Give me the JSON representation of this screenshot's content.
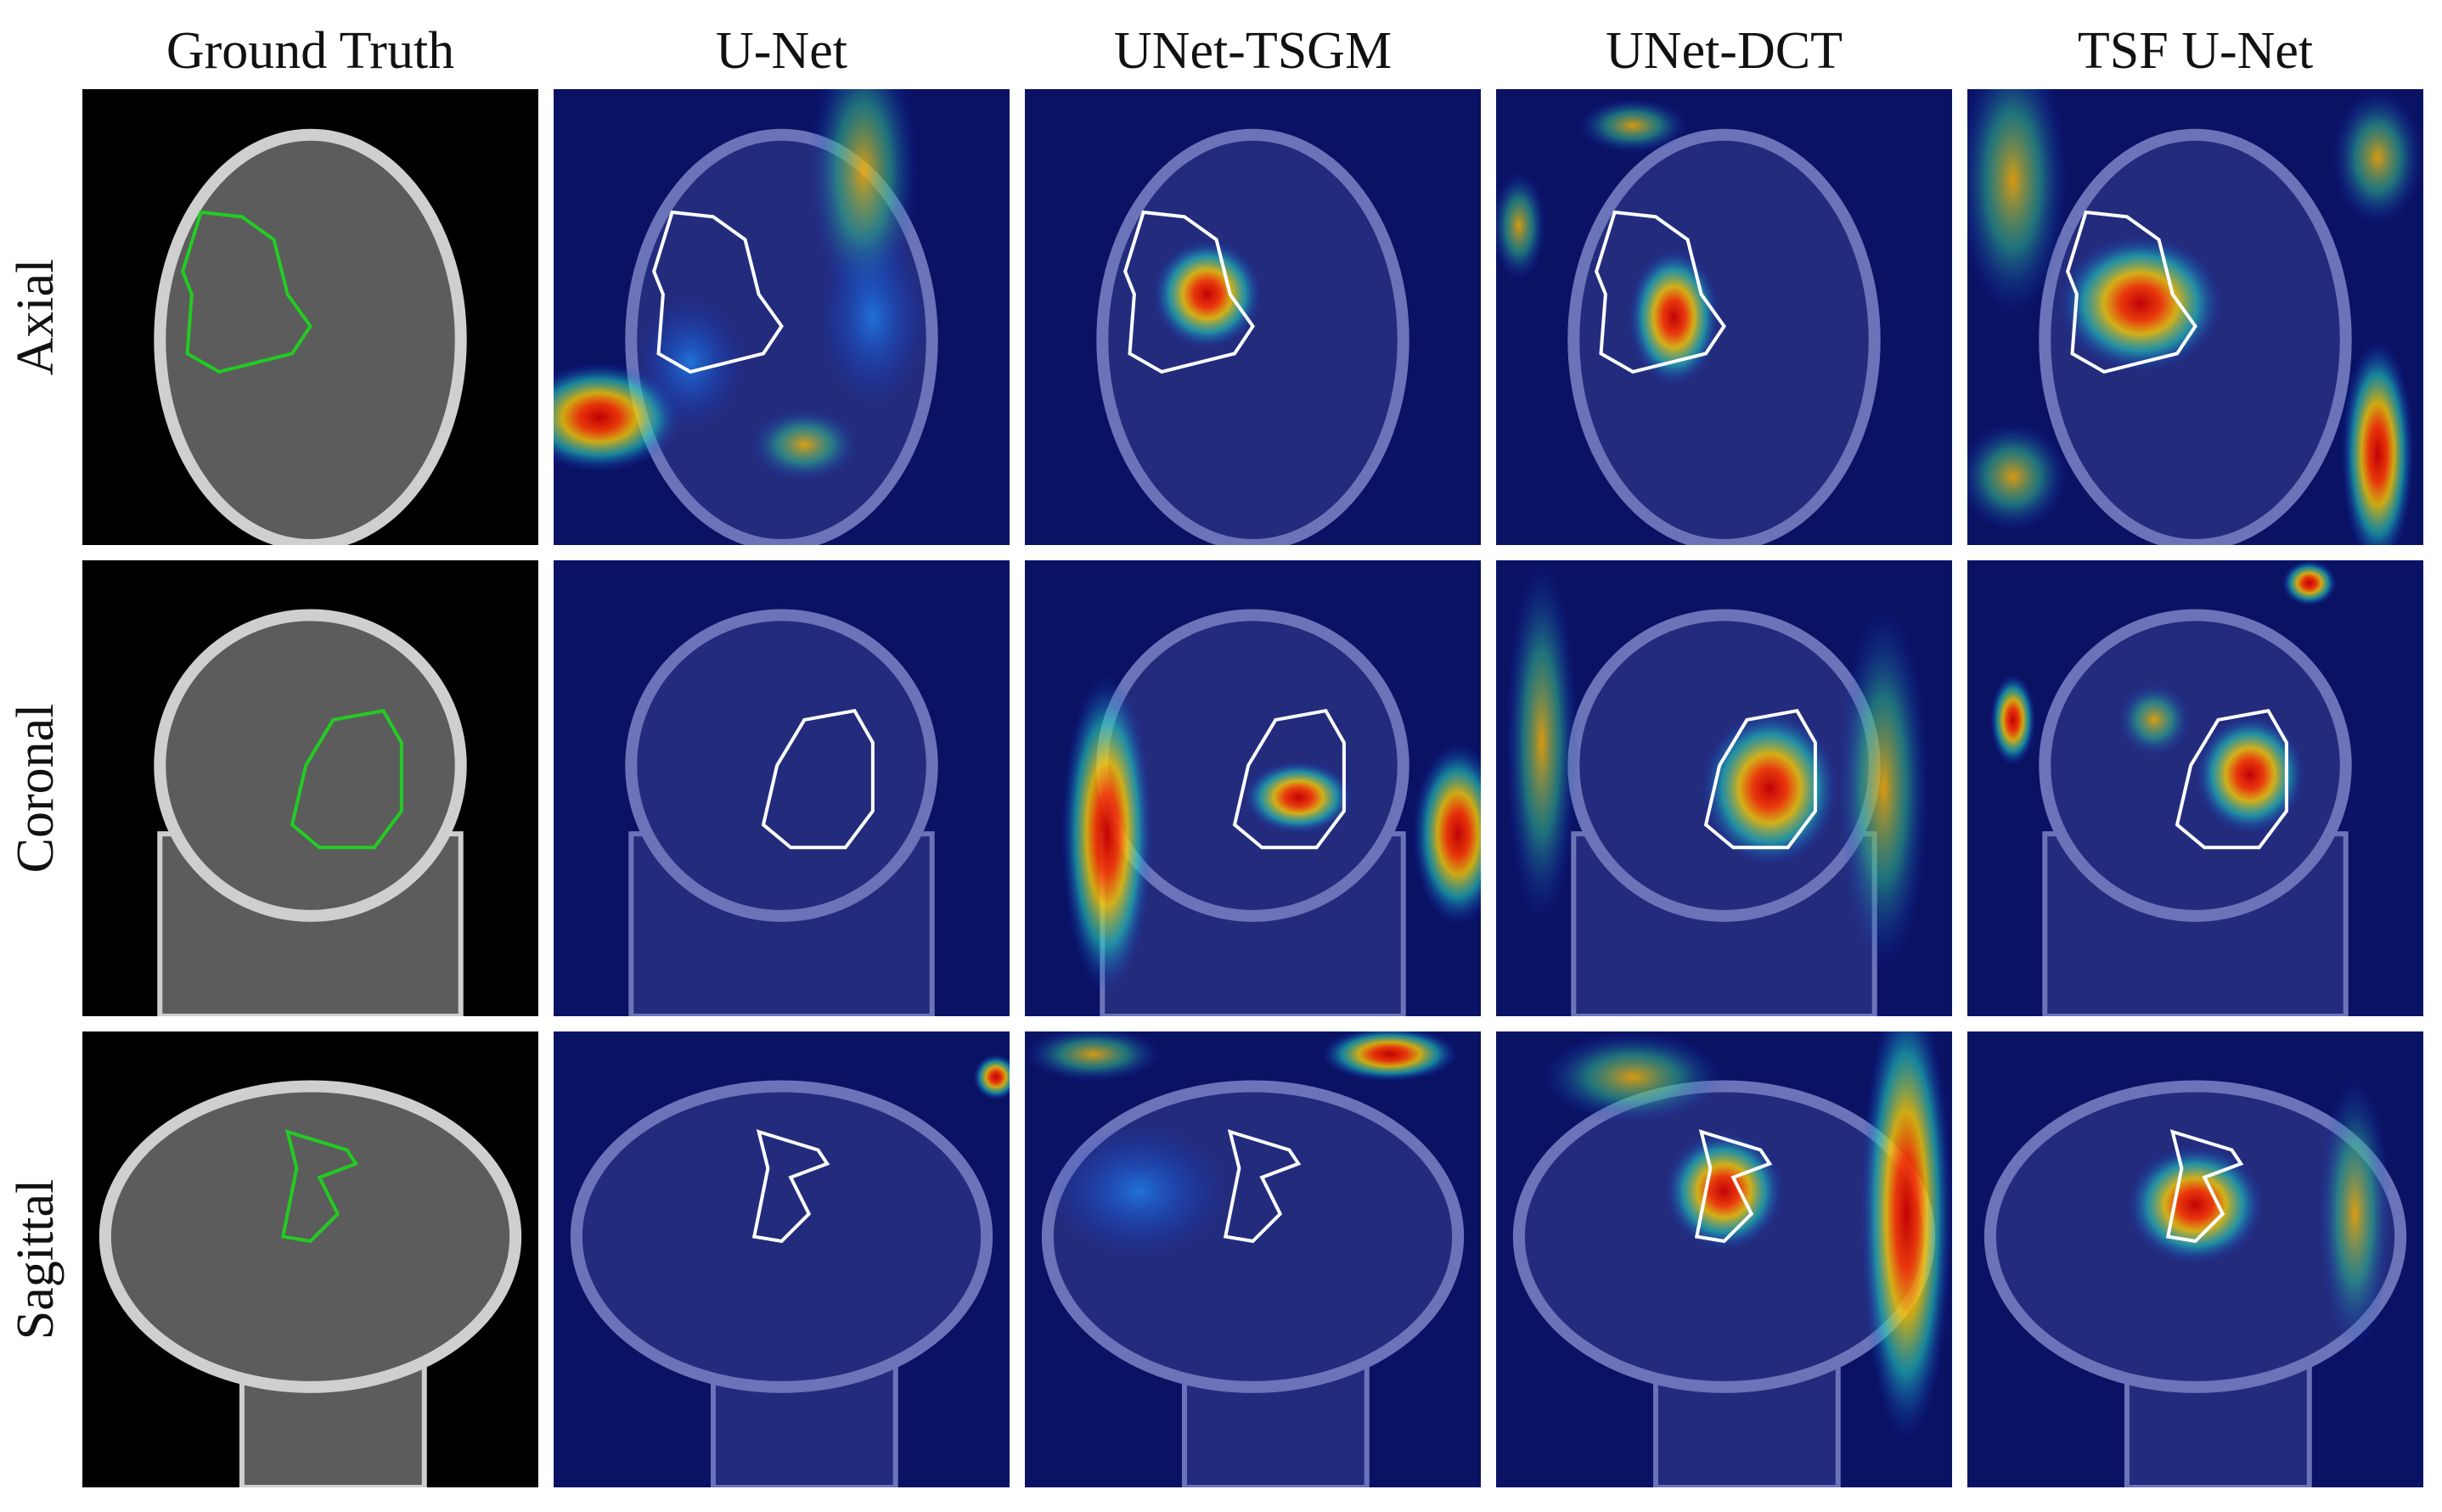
{
  "columns": [
    "Ground Truth",
    "U-Net",
    "UNet-TSGM",
    "UNet-DCT",
    "TSF U-Net"
  ],
  "rows": [
    "Axial",
    "Coronal",
    "Sagittal"
  ]
}
